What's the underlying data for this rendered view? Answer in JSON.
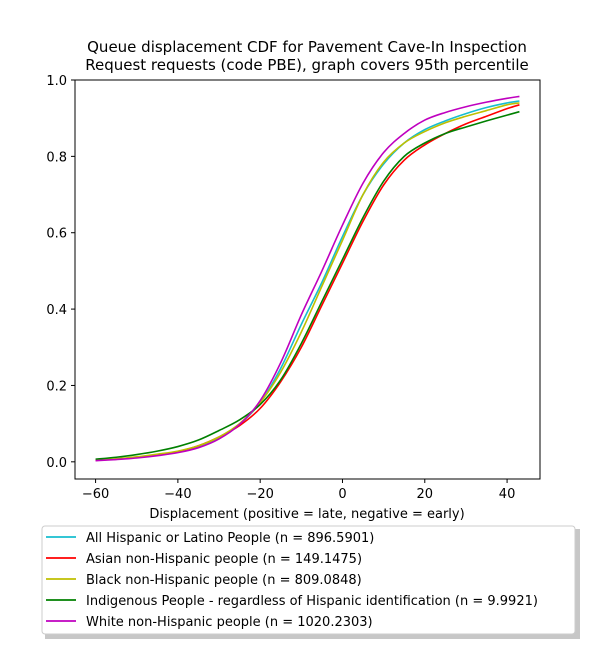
{
  "chart_data": {
    "type": "line",
    "title": [
      "Queue displacement CDF for Pavement Cave-In Inspection",
      "Request  requests (code PBE), graph covers 95th percentile"
    ],
    "xlabel": "Displacement (positive = late, negative = early)",
    "ylabel": "",
    "xlim": [
      -65,
      48
    ],
    "ylim": [
      -0.045,
      1.0
    ],
    "xticks": [
      -60,
      -40,
      -20,
      0,
      20,
      40
    ],
    "yticks": [
      0.0,
      0.2,
      0.4,
      0.6,
      0.8,
      1.0
    ],
    "xtick_labels": [
      "−60",
      "−40",
      "−20",
      "0",
      "20",
      "40"
    ],
    "ytick_labels": [
      "0.0",
      "0.2",
      "0.4",
      "0.6",
      "0.8",
      "1.0"
    ],
    "grid": false,
    "legend_placement": "below plot",
    "x": [
      -60,
      -55,
      -50,
      -45,
      -40,
      -35,
      -30,
      -25,
      -20,
      -15,
      -10,
      -5,
      0,
      5,
      10,
      15,
      20,
      25,
      30,
      35,
      40,
      43
    ],
    "series": [
      {
        "name": "All Hispanic or Latino People (n = 896.5901)",
        "color": "#17becf",
        "values": [
          0.004,
          0.007,
          0.011,
          0.017,
          0.025,
          0.039,
          0.062,
          0.098,
          0.155,
          0.245,
          0.36,
          0.47,
          0.59,
          0.7,
          0.78,
          0.835,
          0.87,
          0.893,
          0.912,
          0.928,
          0.94,
          0.945
        ]
      },
      {
        "name": "Asian non-Hispanic people (n = 149.1475)",
        "color": "#ff0000",
        "values": [
          0.004,
          0.007,
          0.012,
          0.018,
          0.027,
          0.042,
          0.065,
          0.095,
          0.14,
          0.21,
          0.3,
          0.41,
          0.52,
          0.63,
          0.725,
          0.79,
          0.83,
          0.86,
          0.885,
          0.905,
          0.925,
          0.935
        ]
      },
      {
        "name": "Black non-Hispanic people (n = 809.0848)",
        "color": "#bfbf00",
        "values": [
          0.005,
          0.008,
          0.013,
          0.02,
          0.028,
          0.042,
          0.065,
          0.1,
          0.155,
          0.235,
          0.34,
          0.46,
          0.58,
          0.7,
          0.785,
          0.835,
          0.865,
          0.888,
          0.905,
          0.92,
          0.935,
          0.94
        ]
      },
      {
        "name": "Indigenous People - regardless of Hispanic identification (n = 9.9921)",
        "color": "#008000",
        "values": [
          0.007,
          0.012,
          0.019,
          0.028,
          0.04,
          0.057,
          0.082,
          0.11,
          0.15,
          0.215,
          0.31,
          0.42,
          0.53,
          0.64,
          0.735,
          0.8,
          0.835,
          0.86,
          0.877,
          0.893,
          0.908,
          0.917
        ]
      },
      {
        "name": "White non-Hispanic people (n = 1020.2303)",
        "color": "#bf00bf",
        "values": [
          0.003,
          0.006,
          0.01,
          0.016,
          0.024,
          0.037,
          0.06,
          0.098,
          0.16,
          0.26,
          0.385,
          0.5,
          0.62,
          0.73,
          0.81,
          0.86,
          0.895,
          0.915,
          0.93,
          0.942,
          0.952,
          0.957
        ]
      }
    ]
  }
}
